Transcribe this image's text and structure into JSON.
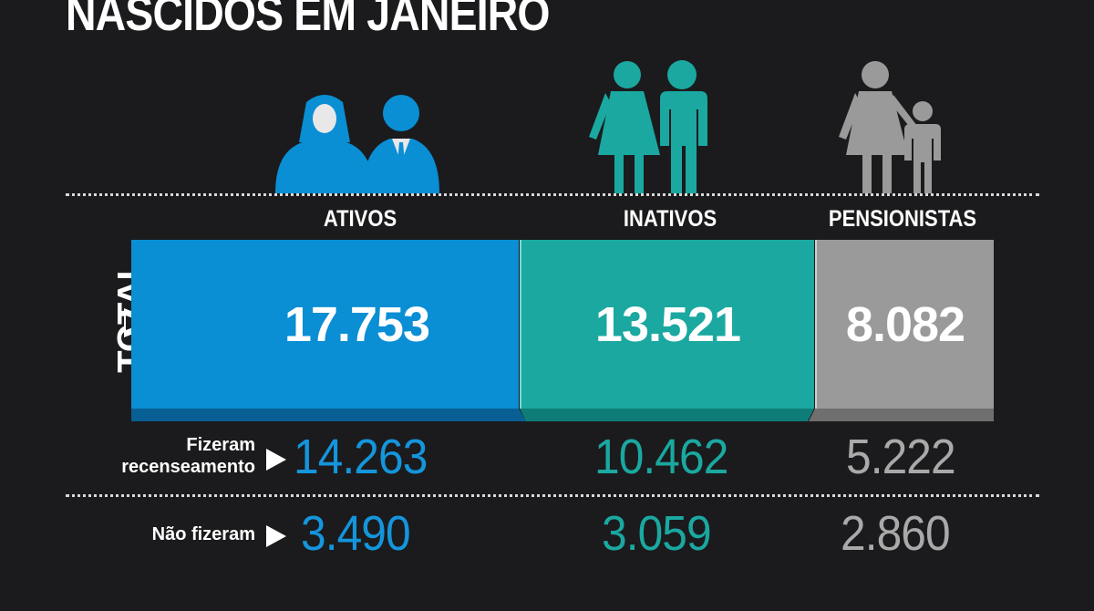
{
  "title": "NASCIDOS EM JANEIRO",
  "colors": {
    "ativos": "#0a8ed4",
    "inativos": "#1aa8a0",
    "pensionistas": "#9a9a9a",
    "background": "#1b1b1d"
  },
  "icons": {
    "ativos": "office-couple-icon",
    "inativos": "couple-icon",
    "pensionistas": "mother-child-icon"
  },
  "total_label": "TOTAL",
  "row_labels": {
    "fizeram_line1": "Fizeram",
    "fizeram_line2": "recenseamento",
    "nao_fizeram": "Não fizeram"
  },
  "chart_data": {
    "type": "table",
    "title": "NASCIDOS EM JANEIRO",
    "categories": [
      "ATIVOS",
      "INATIVOS",
      "PENSIONISTAS"
    ],
    "rows": [
      {
        "name": "TOTAL",
        "values": [
          "17.753",
          "13.521",
          "8.082"
        ]
      },
      {
        "name": "Fizeram recenseamento",
        "values": [
          "14.263",
          "10.462",
          "5.222"
        ]
      },
      {
        "name": "Não fizeram",
        "values": [
          "3.490",
          "3.059",
          "2.860"
        ]
      }
    ]
  }
}
